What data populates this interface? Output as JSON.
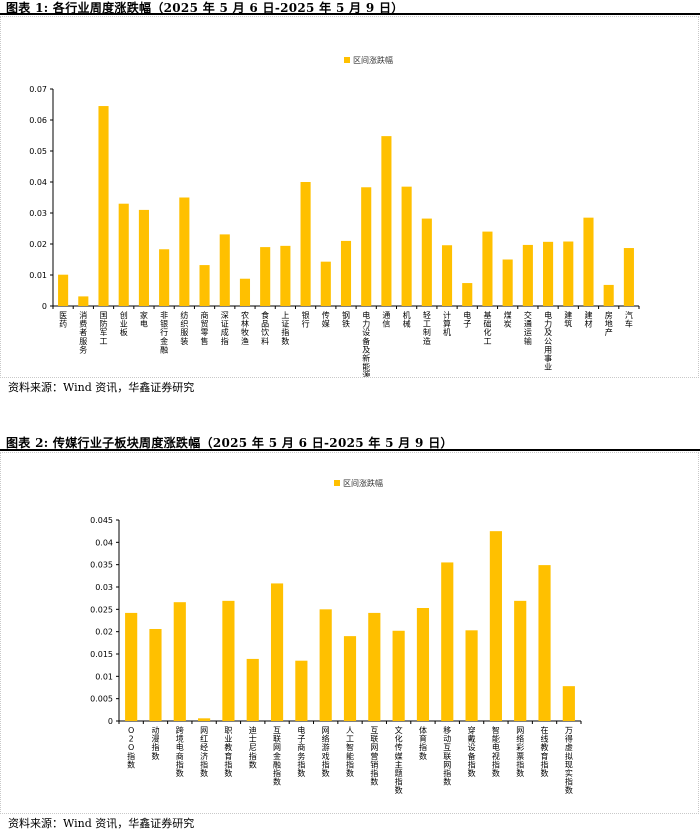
{
  "figure1": {
    "title": "图表 1: 各行业周度涨跌幅（2025 年 5 月 6 日-2025 年 5 月 9 日）",
    "source": "资料来源：Wind 资讯，华鑫证券研究",
    "accent_color": "#FFC000",
    "chart_data": {
      "type": "bar",
      "legend": "区间涨跌幅",
      "legend_position": "top-center",
      "ylim": [
        0,
        0.07
      ],
      "yticks": [
        "0",
        "0.01",
        "0.02",
        "0.03",
        "0.04",
        "0.05",
        "0.06",
        "0.07"
      ],
      "grid": false,
      "categories": [
        "医药",
        "消费者服务",
        "国防军工",
        "创业板",
        "家电",
        "非银行金融",
        "纺织服装",
        "商贸零售",
        "深证成指",
        "农林牧渔",
        "食品饮料",
        "上证指数",
        "银行",
        "传媒",
        "钢铁",
        "电力设备及新能源",
        "通信",
        "机械",
        "轻工制造",
        "计算机",
        "电子",
        "基础化工",
        "煤炭",
        "交通运输",
        "电力及公用事业",
        "建筑",
        "建材",
        "房地产",
        "汽车"
      ],
      "values": [
        0.0101,
        0.0031,
        0.0645,
        0.033,
        0.031,
        0.0183,
        0.035,
        0.0132,
        0.0231,
        0.0088,
        0.019,
        0.0194,
        0.04,
        0.0143,
        0.021,
        0.0383,
        0.0548,
        0.0385,
        0.0282,
        0.0196,
        0.0074,
        0.024,
        0.015,
        0.0197,
        0.0207,
        0.0208,
        0.0285,
        0.0068,
        0.0187
      ]
    }
  },
  "figure2": {
    "title": "图表 2: 传媒行业子板块周度涨跌幅（2025 年 5 月 6 日-2025 年 5 月 9 日）",
    "source": "资料来源：Wind 资讯，华鑫证券研究",
    "accent_color": "#FFC000",
    "chart_data": {
      "type": "bar",
      "legend": "区间涨跌幅",
      "legend_position": "top-center",
      "ylim": [
        0,
        0.045
      ],
      "yticks": [
        "0",
        "0.005",
        "0.01",
        "0.015",
        "0.02",
        "0.025",
        "0.03",
        "0.035",
        "0.04",
        "0.045"
      ],
      "grid": false,
      "categories": [
        "O2O指数",
        "动漫指数",
        "跨境电商指数",
        "网红经济指数",
        "职业教育指数",
        "迪士尼指数",
        "互联网金融指数",
        "电子商务指数",
        "网络游戏指数",
        "人工智能指数",
        "互联网营销指数",
        "文化传媒主题指数",
        "体育指数",
        "移动互联网指数",
        "穿戴设备指数",
        "智能电视指数",
        "网络彩票指数",
        "在线教育指数",
        "万得虚拟现实指数"
      ],
      "values": [
        0.0242,
        0.0206,
        0.0266,
        0.0006,
        0.0269,
        0.0139,
        0.0308,
        0.0135,
        0.025,
        0.019,
        0.0242,
        0.0202,
        0.0253,
        0.0355,
        0.0203,
        0.0425,
        0.0269,
        0.0349,
        0.0078
      ]
    }
  }
}
